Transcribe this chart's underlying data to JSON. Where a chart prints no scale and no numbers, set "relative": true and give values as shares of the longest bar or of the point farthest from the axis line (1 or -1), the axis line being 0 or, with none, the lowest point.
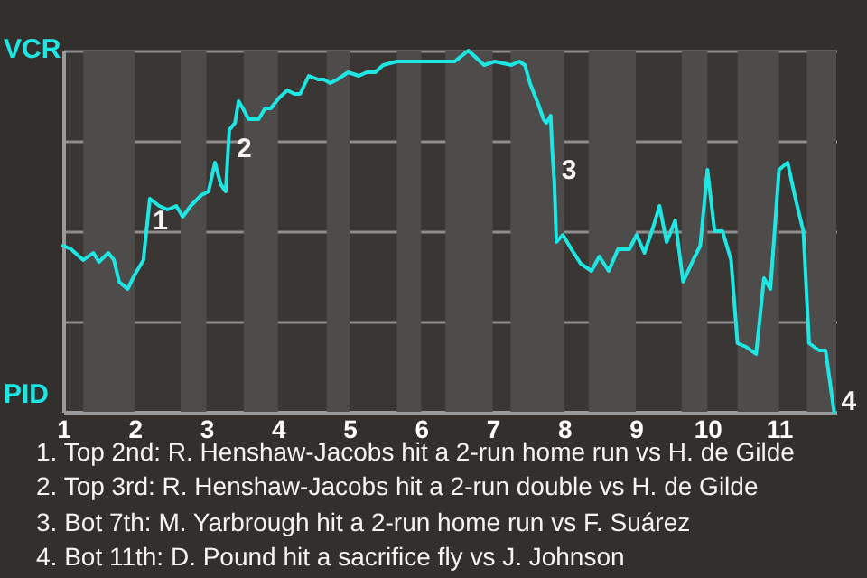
{
  "chart_data": {
    "type": "line",
    "relative": true,
    "x": [
      1.0,
      1.11,
      1.28,
      1.42,
      1.5,
      1.63,
      1.71,
      1.78,
      1.9,
      2.0,
      2.12,
      2.21,
      2.34,
      2.46,
      2.58,
      2.67,
      2.78,
      2.93,
      3.03,
      3.12,
      3.2,
      3.27,
      3.32,
      3.4,
      3.45,
      3.51,
      3.59,
      3.73,
      3.82,
      3.9,
      4.02,
      4.13,
      4.23,
      4.31,
      4.43,
      4.56,
      4.64,
      4.73,
      4.83,
      4.98,
      5.13,
      5.24,
      5.36,
      5.47,
      5.66,
      5.89,
      5.96,
      6.26,
      6.47,
      6.66,
      6.88,
      7.03,
      7.26,
      7.37,
      7.45,
      7.52,
      7.64,
      7.71,
      7.75,
      7.81,
      7.83,
      7.86,
      7.89,
      7.98,
      8.1,
      8.23,
      8.38,
      8.49,
      8.62,
      8.75,
      8.91,
      9.01,
      9.12,
      9.24,
      9.33,
      9.43,
      9.55,
      9.66,
      9.8,
      9.9,
      10.0,
      10.1,
      10.21,
      10.33,
      10.42,
      10.54,
      10.68,
      10.79,
      10.88,
      11.0,
      11.12,
      11.23,
      11.34,
      11.42,
      11.56,
      11.65,
      11.77
    ],
    "series": [
      {
        "color": "#1ee6e3",
        "values": [
          0.46,
          0.45,
          0.42,
          0.44,
          0.415,
          0.44,
          0.42,
          0.36,
          0.34,
          0.38,
          0.42,
          0.59,
          0.57,
          0.56,
          0.57,
          0.54,
          0.57,
          0.6,
          0.61,
          0.69,
          0.63,
          0.61,
          0.78,
          0.8,
          0.86,
          0.84,
          0.81,
          0.81,
          0.84,
          0.84,
          0.87,
          0.89,
          0.88,
          0.88,
          0.93,
          0.92,
          0.92,
          0.91,
          0.92,
          0.94,
          0.93,
          0.94,
          0.94,
          0.96,
          0.97,
          0.97,
          0.97,
          0.97,
          0.97,
          1,
          0.96,
          0.97,
          0.96,
          0.97,
          0.96,
          0.91,
          0.85,
          0.81,
          0.8,
          0.82,
          0.73,
          0.64,
          0.47,
          0.49,
          0.45,
          0.41,
          0.39,
          0.43,
          0.39,
          0.45,
          0.45,
          0.49,
          0.44,
          0.51,
          0.57,
          0.47,
          0.53,
          0.36,
          0.42,
          0.46,
          0.67,
          0.5,
          0.5,
          0.42,
          0.19,
          0.18,
          0.16,
          0.37,
          0.34,
          0.67,
          0.69,
          0.59,
          0.5,
          0.19,
          0.17,
          0.17,
          0
        ]
      }
    ],
    "xlim": [
      1,
      11.8
    ],
    "xticks": [
      1,
      2,
      3,
      4,
      5,
      6,
      7,
      8,
      9,
      10,
      11
    ],
    "grid": "y",
    "bands": [
      {
        "axis": "x",
        "from": 1.28,
        "to": 2,
        "color": "#4e4c4a"
      },
      {
        "axis": "x",
        "from": 2.64,
        "to": 3,
        "color": "#4e4c4a"
      },
      {
        "axis": "x",
        "from": 3.52,
        "to": 4,
        "color": "#4e4c4a"
      },
      {
        "axis": "x",
        "from": 4.68,
        "to": 5,
        "color": "#4e4c4a"
      },
      {
        "axis": "x",
        "from": 5.66,
        "to": 6,
        "color": "#4e4c4a"
      },
      {
        "axis": "x",
        "from": 6.34,
        "to": 7,
        "color": "#4e4c4a"
      },
      {
        "axis": "x",
        "from": 7.25,
        "to": 8,
        "color": "#4e4c4a"
      },
      {
        "axis": "x",
        "from": 8.34,
        "to": 9,
        "color": "#4e4c4a"
      },
      {
        "axis": "x",
        "from": 9.64,
        "to": 10,
        "color": "#4e4c4a"
      },
      {
        "axis": "x",
        "from": 10.42,
        "to": 11,
        "color": "#4e4c4a"
      },
      {
        "axis": "x",
        "from": 11.39,
        "to": 11.8,
        "color": "#4e4c4a"
      }
    ],
    "annotations": [
      "VCR",
      "PID",
      {
        "text": "1",
        "x": 2.15,
        "y": 0.5
      },
      {
        "text": "2",
        "x": 3.32,
        "y": 0.7
      },
      {
        "text": "3",
        "x": 7.86,
        "y": 0.64
      },
      {
        "text": "4",
        "x": 11.77,
        "y": 0
      },
      "1. Top 2nd: R. Henshaw-Jacobs hit a 2-run home run vs H. de Gilde",
      "2. Top 3rd: R. Henshaw-Jacobs hit a 2-run double vs H. de Gilde",
      "3. Bot 7th: M. Yarbrough hit a 2-run home run vs F. Suárez",
      "4. Bot 11th: D. Pound hit a sacrifice fly vs J. Johnson"
    ]
  }
}
